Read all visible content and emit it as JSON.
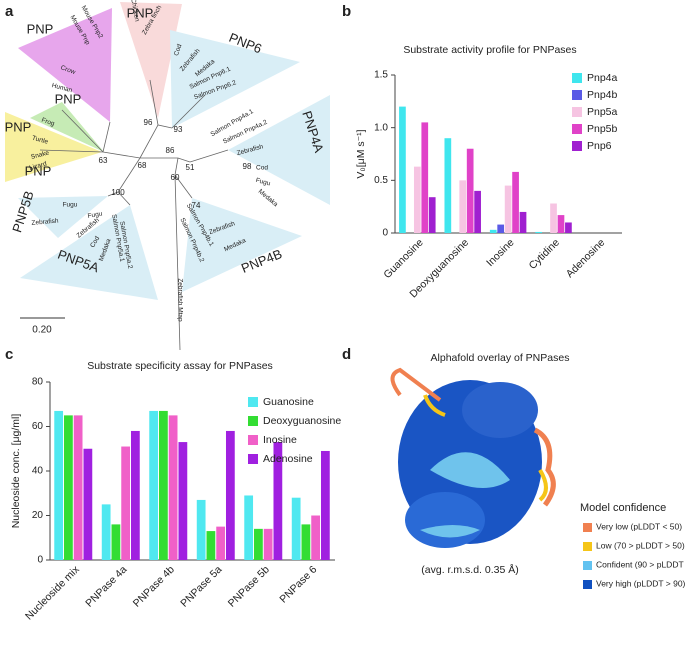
{
  "panel_labels": [
    "a",
    "b",
    "c",
    "d"
  ],
  "tree": {
    "group_labels": [
      "PNP",
      "PNP",
      "PNP",
      "PNP",
      "PNP",
      "PNP6",
      "PNP4A",
      "PNP4B",
      "PNP5A",
      "PNP5B"
    ],
    "species": [
      "Mouse Pnp",
      "Mouse Pnp2",
      "Crow",
      "Human",
      "Frog",
      "Turtle",
      "Snake",
      "Lizard",
      "Chicken",
      "Zebra finch",
      "Cod",
      "Zebrafish",
      "Medaka",
      "Salmon Pnp6.1",
      "Salmon Pnp6.2",
      "Salmon Pnp4a.1",
      "Salmon Pnp4a.2",
      "Zebrafish",
      "Cod",
      "Fugu",
      "Medaka",
      "Zebrafish",
      "Medaka",
      "Salmon Pnp4b.1",
      "Salmon Pnp4b.2",
      "Zebrafish Mtap",
      "Fugu",
      "Zebrafish",
      "Fugu",
      "Zebrafish",
      "Cod",
      "Medaka",
      "Salmon Pnp5a.1",
      "Salmon Pnp5a.2"
    ],
    "bootstrap": [
      "96",
      "93",
      "86",
      "98",
      "63",
      "68",
      "51",
      "60",
      "74",
      "100"
    ],
    "scale": "0.20"
  },
  "chart_data": [
    {
      "type": "bar",
      "title": "Substrate activity profile for PNPases",
      "y_label": "V₀[μM s⁻¹]",
      "categories": [
        "Guanosine",
        "Deoxyguanosine",
        "Inosine",
        "Cytidine",
        "Adenosine"
      ],
      "series": [
        {
          "name": "Pnp4a",
          "color": "#3fe6ee",
          "values": [
            1.2,
            0.9,
            0.03,
            0.01,
            0
          ]
        },
        {
          "name": "Pnp4b",
          "color": "#5a5ae6",
          "values": [
            0,
            0,
            0.08,
            0,
            0
          ]
        },
        {
          "name": "Pnp5a",
          "color": "#f6c4e2",
          "values": [
            0.63,
            0.5,
            0.45,
            0.28,
            0
          ]
        },
        {
          "name": "Pnp5b",
          "color": "#e042c8",
          "values": [
            1.05,
            0.8,
            0.58,
            0.17,
            0
          ]
        },
        {
          "name": "Pnp6",
          "color": "#a020d0",
          "values": [
            0.34,
            0.4,
            0.2,
            0.1,
            0
          ]
        }
      ],
      "ylim": [
        0,
        1.5
      ],
      "yticks": [
        0,
        0.5,
        {
          "value": 1,
          "label": "1.0"
        },
        1.5
      ],
      "legend": "upper right"
    },
    {
      "type": "bar",
      "title": "Substrate specificity assay for PNPases",
      "y_label": "Nucleoside conc. [μg/ml]",
      "categories": [
        "Nucleoside mix",
        "PNPase 4a",
        "PNPase 4b",
        "PNPase 5a",
        "PNPase 5b",
        "PNPase 6"
      ],
      "series": [
        {
          "name": "Guanosine",
          "color": "#4fe8f0",
          "values": [
            67,
            25,
            67,
            27,
            29,
            28
          ]
        },
        {
          "name": "Deoxyguanosine",
          "color": "#33dd33",
          "values": [
            65,
            16,
            67,
            13,
            14,
            16
          ]
        },
        {
          "name": "Inosine",
          "color": "#f060c8",
          "values": [
            65,
            51,
            65,
            15,
            14,
            20
          ]
        },
        {
          "name": "Adenosine",
          "color": "#a020e0",
          "values": [
            50,
            58,
            53,
            58,
            53,
            49
          ]
        }
      ],
      "ylim": [
        0,
        80
      ],
      "yticks": [
        0,
        20,
        40,
        60,
        80
      ],
      "legend": "upper right"
    }
  ],
  "structure": {
    "title": "Alphafold overlay of PNPases",
    "rmsd_note": "(avg. r.m.s.d. 0.35 Å)",
    "legend_title": "Model confidence",
    "legend": [
      {
        "label": "Very low (pLDDT < 50)",
        "color": "#f08050"
      },
      {
        "label": "Low (70 > pLDDT > 50)",
        "color": "#f5c518"
      },
      {
        "label": "Confident (90 > pLDDT > 70)",
        "color": "#62c2f0"
      },
      {
        "label": "Very high (pLDDT > 90)",
        "color": "#1050c0"
      }
    ]
  }
}
